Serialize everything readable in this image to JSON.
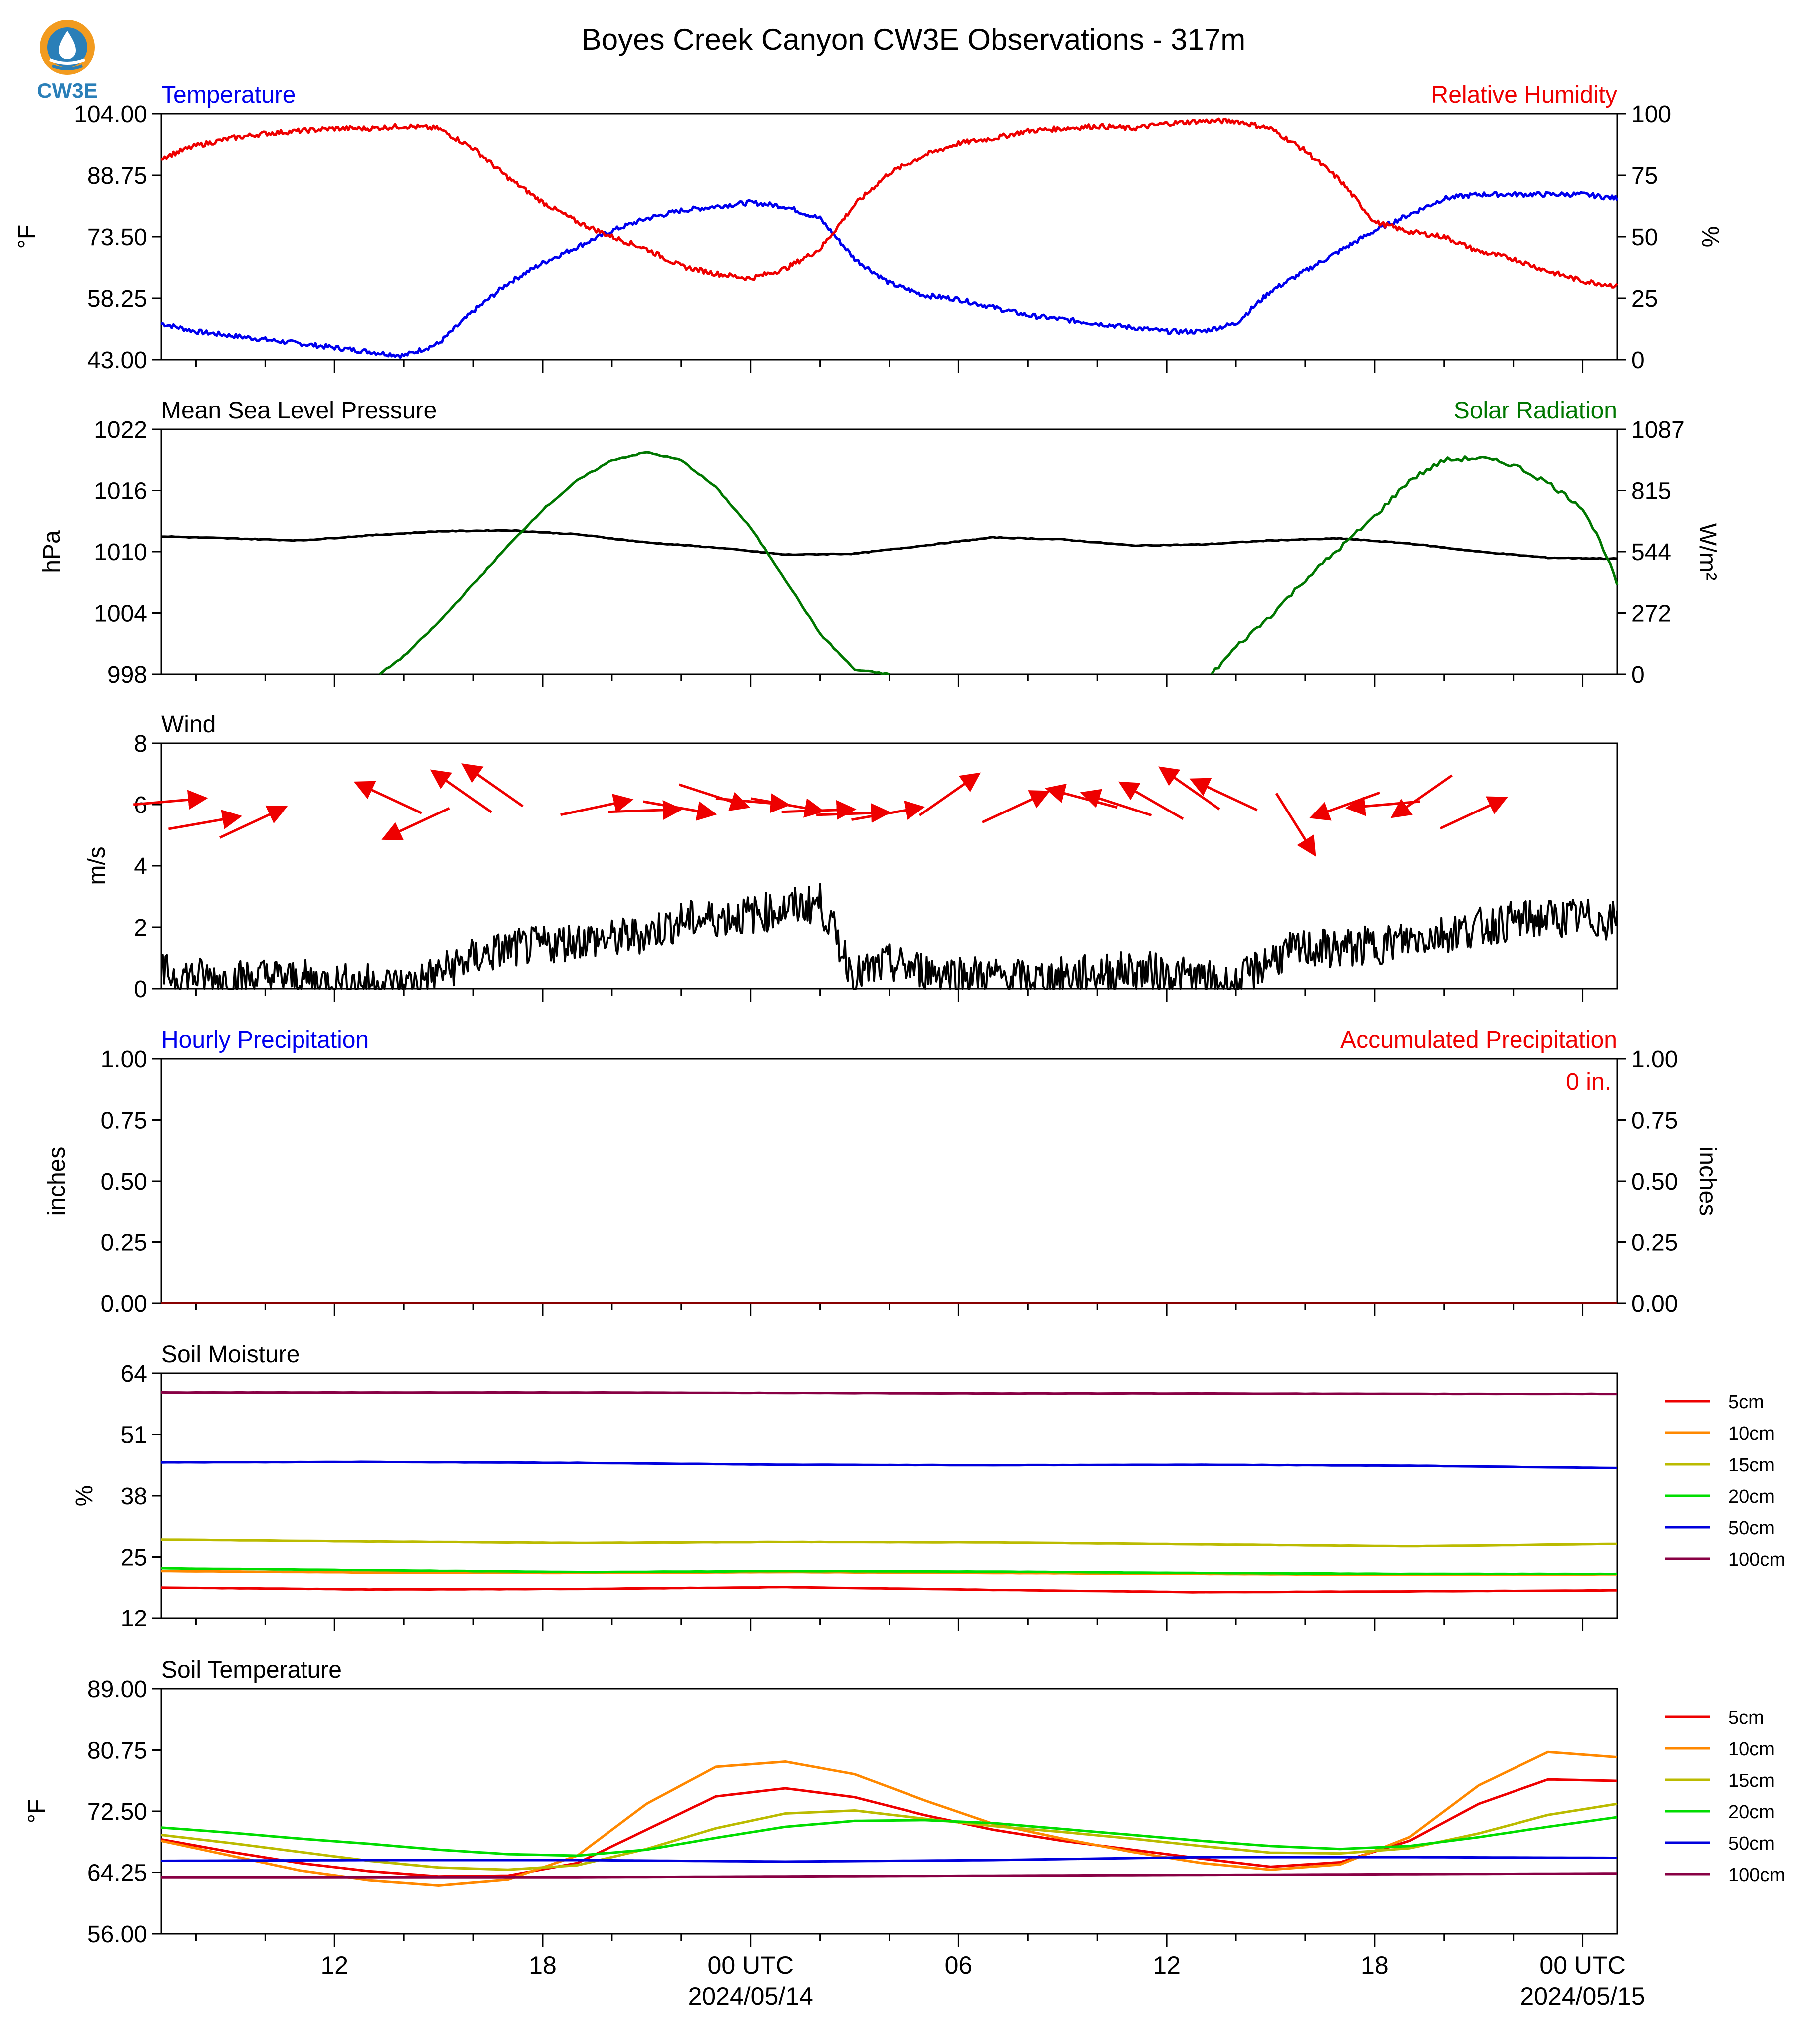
{
  "title": "Boyes Creek Canyon CW3E Observations - 317m",
  "logo": {
    "text": "CW3E"
  },
  "colors": {
    "blue": "#0000ee",
    "red": "#ee0000",
    "green": "#007700",
    "black": "#000000"
  },
  "x_axis": {
    "tick_labels": [
      "12",
      "18",
      "00 UTC",
      "06",
      "12",
      "18",
      "00 UTC"
    ],
    "tick_hours": [
      12,
      18,
      24,
      30,
      36,
      42,
      48
    ],
    "date_labels": [
      "2024/05/14",
      "2024/05/15"
    ],
    "date_hours": [
      24,
      48
    ],
    "range_hours": [
      7,
      49
    ]
  },
  "legend_labels": [
    "5cm",
    "10cm",
    "15cm",
    "20cm",
    "50cm",
    "100cm"
  ],
  "legend_colors": [
    "#ee0000",
    "#ff8800",
    "#bbbb00",
    "#00dd00",
    "#0000dd",
    "#880044"
  ],
  "panels": {
    "temp_rh": {
      "left_title": "Temperature",
      "right_title": "Relative Humidity",
      "left_unit": "°F",
      "right_unit": "%",
      "left_ticks": [
        "104.00",
        "88.75",
        "73.50",
        "58.25",
        "43.00"
      ],
      "right_ticks": [
        "100",
        "75",
        "50",
        "25",
        "0"
      ]
    },
    "pressure_solar": {
      "left_title": "Mean Sea Level Pressure",
      "right_title": "Solar Radiation",
      "left_unit": "hPa",
      "right_unit": "W/m²",
      "left_ticks": [
        "1022",
        "1016",
        "1010",
        "1004",
        "998"
      ],
      "right_ticks": [
        "1087",
        "815",
        "544",
        "272",
        "0"
      ]
    },
    "wind": {
      "left_title": "Wind",
      "left_unit": "m/s",
      "left_ticks": [
        "8",
        "6",
        "4",
        "2",
        "0"
      ]
    },
    "precip": {
      "left_title": "Hourly Precipitation",
      "right_title": "Accumulated Precipitation",
      "left_unit": "inches",
      "right_unit": "inches",
      "left_ticks": [
        "1.00",
        "0.75",
        "0.50",
        "0.25",
        "0.00"
      ],
      "right_ticks": [
        "1.00",
        "0.75",
        "0.50",
        "0.25",
        "0.00"
      ],
      "accum_label": "0 in."
    },
    "soil_moisture": {
      "left_title": "Soil Moisture",
      "left_unit": "%",
      "left_ticks": [
        "64",
        "51",
        "38",
        "25",
        "12"
      ]
    },
    "soil_temp": {
      "left_title": "Soil Temperature",
      "left_unit": "°F",
      "left_ticks": [
        "89.00",
        "80.75",
        "72.50",
        "64.25",
        "56.00"
      ]
    }
  },
  "chart_data": [
    {
      "type": "line",
      "title": "Temperature",
      "ylabel": "°F",
      "ylim": [
        43,
        104
      ],
      "series": [
        {
          "name": "Temperature",
          "color": "#0000ee",
          "x": [
            7,
            8,
            9,
            10,
            11,
            12,
            13,
            14,
            15,
            16,
            17,
            18,
            19,
            20,
            21,
            22,
            23,
            24,
            25,
            26,
            27,
            28,
            29,
            30,
            31,
            32,
            33,
            34,
            35,
            36,
            37,
            38,
            39,
            40,
            41,
            42,
            43,
            44,
            45,
            46,
            47,
            48,
            49
          ],
          "y": [
            52,
            50,
            49,
            48,
            47,
            46,
            45,
            44,
            47,
            55,
            62,
            67,
            71,
            75,
            78,
            80,
            81,
            82,
            81,
            78,
            68,
            62,
            59,
            58,
            56,
            54,
            53,
            52,
            51,
            50,
            50,
            52,
            60,
            65,
            70,
            75,
            79,
            83,
            84,
            84,
            84,
            84,
            83
          ]
        }
      ]
    },
    {
      "type": "line",
      "title": "Relative Humidity",
      "ylabel": "%",
      "ylim": [
        0,
        100
      ],
      "series": [
        {
          "name": "Relative Humidity",
          "color": "#ee0000",
          "x": [
            7,
            8,
            9,
            10,
            11,
            12,
            13,
            14,
            15,
            16,
            17,
            18,
            19,
            20,
            21,
            22,
            23,
            24,
            25,
            26,
            27,
            28,
            29,
            30,
            31,
            32,
            33,
            34,
            35,
            36,
            37,
            38,
            39,
            40,
            41,
            42,
            43,
            44,
            45,
            46,
            47,
            48,
            49
          ],
          "y": [
            82,
            87,
            90,
            92,
            93,
            94,
            94,
            95,
            94,
            86,
            74,
            64,
            56,
            50,
            45,
            38,
            35,
            33,
            37,
            45,
            63,
            76,
            83,
            88,
            90,
            93,
            94,
            95,
            94,
            96,
            97,
            97,
            94,
            85,
            73,
            56,
            52,
            50,
            44,
            41,
            36,
            32,
            30
          ]
        }
      ]
    },
    {
      "type": "line",
      "title": "Mean Sea Level Pressure",
      "ylabel": "hPa",
      "ylim": [
        998,
        1022
      ],
      "series": [
        {
          "name": "Mean Sea Level Pressure",
          "color": "#000000",
          "x": [
            7,
            9,
            11,
            13,
            15,
            17,
            19,
            21,
            23,
            25,
            27,
            29,
            31,
            33,
            35,
            37,
            39,
            41,
            43,
            45,
            47,
            49
          ],
          "y": [
            1011.5,
            1011.3,
            1011.1,
            1011.6,
            1012.0,
            1012.1,
            1011.7,
            1010.9,
            1010.4,
            1009.7,
            1009.8,
            1010.6,
            1011.4,
            1011.2,
            1010.6,
            1010.7,
            1011.1,
            1011.3,
            1010.8,
            1010.0,
            1009.4,
            1009.3
          ]
        }
      ]
    },
    {
      "type": "line",
      "title": "Solar Radiation",
      "ylabel": "W/m²",
      "ylim": [
        0,
        1087
      ],
      "series": [
        {
          "name": "Solar Radiation",
          "color": "#007700",
          "x": [
            13.3,
            14,
            15,
            16,
            17,
            18,
            19,
            20,
            21,
            22,
            23,
            24,
            25,
            26,
            27,
            28,
            37.3,
            38,
            39,
            40,
            41,
            42,
            43,
            44,
            45,
            46,
            47,
            48,
            48.6,
            49
          ],
          "y": [
            0,
            80,
            230,
            400,
            570,
            730,
            860,
            950,
            985,
            950,
            830,
            650,
            420,
            180,
            20,
            0,
            0,
            120,
            260,
            420,
            560,
            700,
            860,
            950,
            960,
            930,
            850,
            740,
            560,
            400
          ]
        }
      ]
    },
    {
      "type": "line",
      "title": "Wind",
      "ylabel": "m/s",
      "ylim": [
        0,
        8
      ],
      "series": [
        {
          "name": "Wind speed",
          "color": "#000000",
          "x": [
            7,
            8,
            9,
            10,
            11,
            12,
            13,
            14,
            15,
            16,
            17,
            18,
            19,
            20,
            21,
            22,
            23,
            24,
            25,
            26,
            27,
            28,
            29,
            30,
            31,
            32,
            33,
            34,
            35,
            36,
            37,
            38,
            39,
            40,
            41,
            42,
            43,
            44,
            45,
            46,
            47,
            48,
            49
          ],
          "y": [
            0.5,
            0.4,
            0.3,
            0.4,
            0.3,
            0.2,
            0.2,
            0.1,
            0.5,
            1.0,
            1.3,
            1.4,
            1.6,
            1.6,
            1.8,
            2.2,
            2.3,
            2.4,
            2.6,
            2.8,
            0.4,
            0.8,
            0.6,
            0.5,
            0.4,
            0.3,
            0.4,
            0.5,
            0.6,
            0.5,
            0.3,
            0.1,
            1.0,
            1.3,
            1.3,
            1.4,
            1.6,
            1.8,
            2.0,
            2.2,
            2.3,
            2.3,
            2.2
          ]
        }
      ]
    },
    {
      "type": "line",
      "title": "Hourly Precipitation",
      "ylabel": "inches",
      "ylim": [
        0,
        1
      ],
      "series": [
        {
          "name": "Accumulated Precipitation",
          "color": "#880000",
          "x": [
            7,
            49
          ],
          "y": [
            0,
            0
          ]
        }
      ]
    },
    {
      "type": "line",
      "title": "Soil Moisture",
      "ylabel": "%",
      "ylim": [
        12,
        64
      ],
      "series": [
        {
          "name": "5cm",
          "color": "#ee0000",
          "x": [
            7,
            13,
            19,
            25,
            31,
            37,
            43,
            49
          ],
          "y": [
            18.5,
            18.1,
            18.2,
            18.6,
            18.0,
            17.5,
            17.7,
            17.9
          ]
        },
        {
          "name": "10cm",
          "color": "#ff8800",
          "x": [
            7,
            13,
            19,
            25,
            31,
            37,
            43,
            49
          ],
          "y": [
            22.0,
            21.7,
            21.6,
            21.8,
            21.6,
            21.4,
            21.2,
            21.3
          ]
        },
        {
          "name": "15cm",
          "color": "#bbbb00",
          "x": [
            7,
            13,
            19,
            25,
            31,
            37,
            43,
            49
          ],
          "y": [
            28.7,
            28.3,
            28.0,
            28.2,
            28.1,
            27.7,
            27.3,
            27.8
          ]
        },
        {
          "name": "20cm",
          "color": "#00dd00",
          "x": [
            7,
            13,
            19,
            25,
            31,
            37,
            43,
            49
          ],
          "y": [
            22.6,
            22.2,
            21.8,
            22.0,
            21.9,
            21.6,
            21.4,
            21.4
          ]
        },
        {
          "name": "50cm",
          "color": "#0000dd",
          "x": [
            7,
            13,
            19,
            25,
            31,
            37,
            43,
            49
          ],
          "y": [
            45.1,
            45.2,
            45.0,
            44.6,
            44.5,
            44.6,
            44.4,
            43.9
          ]
        },
        {
          "name": "100cm",
          "color": "#880044",
          "x": [
            7,
            13,
            19,
            25,
            31,
            37,
            43,
            49
          ],
          "y": [
            59.9,
            59.9,
            59.9,
            59.8,
            59.7,
            59.7,
            59.6,
            59.6
          ]
        }
      ]
    },
    {
      "type": "line",
      "title": "Soil Temperature",
      "ylabel": "°F",
      "ylim": [
        56,
        89
      ],
      "series": [
        {
          "name": "5cm",
          "color": "#ee0000",
          "x": [
            7,
            9,
            11,
            13,
            15,
            17,
            19,
            21,
            23,
            25,
            27,
            29,
            31,
            33,
            35,
            37,
            39,
            41,
            43,
            45,
            47,
            49
          ],
          "y": [
            68.7,
            67.0,
            65.5,
            64.4,
            63.7,
            63.8,
            65.5,
            70.0,
            74.5,
            75.6,
            74.4,
            72.0,
            70.0,
            68.5,
            67.3,
            66.1,
            65.0,
            65.6,
            68.5,
            73.5,
            76.8,
            76.6
          ]
        },
        {
          "name": "10cm",
          "color": "#ff8800",
          "x": [
            7,
            9,
            11,
            13,
            15,
            17,
            19,
            21,
            23,
            25,
            27,
            29,
            31,
            33,
            35,
            37,
            39,
            41,
            43,
            45,
            47,
            49
          ],
          "y": [
            68.5,
            66.5,
            64.5,
            63.2,
            62.5,
            63.3,
            66.5,
            73.5,
            78.5,
            79.2,
            77.5,
            74.0,
            70.8,
            68.8,
            67.0,
            65.5,
            64.6,
            65.3,
            69.0,
            76.0,
            80.5,
            79.8
          ]
        },
        {
          "name": "15cm",
          "color": "#bbbb00",
          "x": [
            7,
            9,
            11,
            13,
            15,
            17,
            19,
            21,
            23,
            25,
            27,
            29,
            31,
            33,
            35,
            37,
            39,
            41,
            43,
            45,
            47,
            49
          ],
          "y": [
            69.3,
            68.2,
            67.0,
            65.8,
            64.9,
            64.6,
            65.2,
            67.4,
            70.2,
            72.2,
            72.6,
            71.5,
            70.5,
            69.7,
            68.8,
            67.8,
            66.9,
            66.8,
            67.5,
            69.5,
            72.0,
            73.5
          ]
        },
        {
          "name": "20cm",
          "color": "#00dd00",
          "x": [
            7,
            9,
            11,
            13,
            15,
            17,
            19,
            21,
            23,
            25,
            27,
            29,
            31,
            33,
            35,
            37,
            39,
            41,
            43,
            45,
            47,
            49
          ],
          "y": [
            70.3,
            69.6,
            68.8,
            68.1,
            67.3,
            66.7,
            66.5,
            67.3,
            68.9,
            70.4,
            71.2,
            71.3,
            70.9,
            70.1,
            69.3,
            68.5,
            67.8,
            67.4,
            67.8,
            69.0,
            70.4,
            71.7
          ]
        },
        {
          "name": "50cm",
          "color": "#0000dd",
          "x": [
            7,
            13,
            19,
            25,
            31,
            37,
            43,
            49
          ],
          "y": [
            65.8,
            65.9,
            65.9,
            65.7,
            65.9,
            66.3,
            66.3,
            66.2
          ]
        },
        {
          "name": "100cm",
          "color": "#880044",
          "x": [
            7,
            13,
            19,
            25,
            31,
            37,
            43,
            49
          ],
          "y": [
            63.6,
            63.6,
            63.6,
            63.7,
            63.8,
            63.9,
            64.0,
            64.1
          ]
        }
      ]
    }
  ],
  "wind_arrows": [
    {
      "hour": 7.2,
      "speed": 6.1,
      "dir": 85
    },
    {
      "hour": 8.2,
      "speed": 5.4,
      "dir": 80
    },
    {
      "hour": 9.6,
      "speed": 5.4,
      "dir": 65
    },
    {
      "hour": 13.6,
      "speed": 6.2,
      "dir": -65
    },
    {
      "hour": 14.4,
      "speed": 5.4,
      "dir": -115
    },
    {
      "hour": 15.7,
      "speed": 6.4,
      "dir": -55
    },
    {
      "hour": 16.6,
      "speed": 6.6,
      "dir": -55
    },
    {
      "hour": 19.5,
      "speed": 5.9,
      "dir": 78
    },
    {
      "hour": 20.9,
      "speed": 5.8,
      "dir": 88
    },
    {
      "hour": 21.9,
      "speed": 5.9,
      "dir": 100
    },
    {
      "hour": 22.9,
      "speed": 6.3,
      "dir": 108
    },
    {
      "hour": 24.0,
      "speed": 6.1,
      "dir": 95
    },
    {
      "hour": 25.0,
      "speed": 6.0,
      "dir": 100
    },
    {
      "hour": 25.9,
      "speed": 5.8,
      "dir": 88
    },
    {
      "hour": 26.9,
      "speed": 5.7,
      "dir": 88
    },
    {
      "hour": 27.9,
      "speed": 5.7,
      "dir": 80
    },
    {
      "hour": 29.7,
      "speed": 6.3,
      "dir": 55
    },
    {
      "hour": 31.6,
      "speed": 5.9,
      "dir": 65
    },
    {
      "hour": 33.6,
      "speed": 6.2,
      "dir": -75
    },
    {
      "hour": 34.6,
      "speed": 6.0,
      "dir": -72
    },
    {
      "hour": 35.6,
      "speed": 6.1,
      "dir": -60
    },
    {
      "hour": 36.7,
      "speed": 6.5,
      "dir": -55
    },
    {
      "hour": 37.7,
      "speed": 6.3,
      "dir": -65
    },
    {
      "hour": 39.7,
      "speed": 5.4,
      "dir": 148
    },
    {
      "hour": 41.2,
      "speed": 6.0,
      "dir": -110
    },
    {
      "hour": 42.3,
      "speed": 6.0,
      "dir": -95
    },
    {
      "hour": 43.4,
      "speed": 6.3,
      "dir": -125
    },
    {
      "hour": 44.8,
      "speed": 5.7,
      "dir": 65
    }
  ]
}
